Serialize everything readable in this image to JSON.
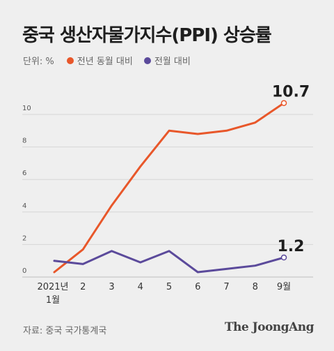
{
  "header": {
    "title": "중국 생산자물가지수(PPI) 상승률"
  },
  "legend": {
    "unit_label": "단위: %",
    "items": [
      {
        "label": "전년 동월 대비",
        "color": "#e8572a"
      },
      {
        "label": "전월 대비",
        "color": "#5b4a9b"
      }
    ]
  },
  "footer": {
    "source": "자료: 중국 국가통계국",
    "logo": "The JoongAng"
  },
  "chart_data": {
    "type": "line",
    "categories": [
      "2021년\n1월",
      "2",
      "3",
      "4",
      "5",
      "6",
      "7",
      "8",
      "9월"
    ],
    "series": [
      {
        "name": "전년 동월 대비",
        "color": "#e8572a",
        "values": [
          0.3,
          1.7,
          4.4,
          6.8,
          9.0,
          8.8,
          9.0,
          9.5,
          10.7
        ],
        "end_label": "10.7"
      },
      {
        "name": "전월 대비",
        "color": "#5b4a9b",
        "values": [
          1.0,
          0.8,
          1.6,
          0.9,
          1.6,
          0.3,
          0.5,
          0.7,
          1.2
        ],
        "end_label": "1.2"
      }
    ],
    "yticks": [
      0,
      2,
      4,
      6,
      8,
      10
    ],
    "ylim": [
      0,
      12
    ],
    "grid": true
  }
}
